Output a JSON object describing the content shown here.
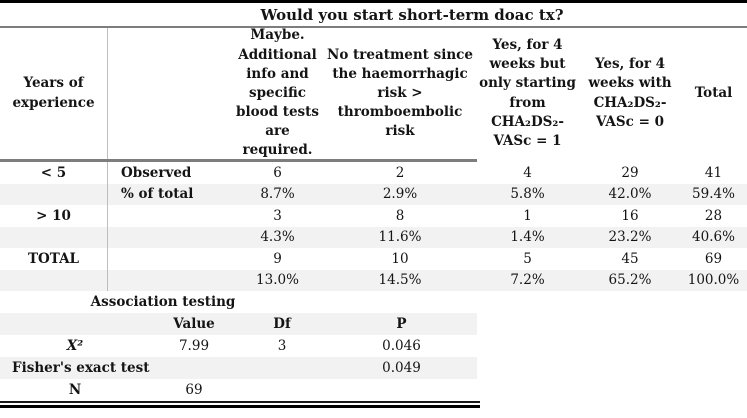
{
  "table": {
    "title": "Would you start short-term doac tx?",
    "col_headers": {
      "experience": "Years of\nexperience",
      "maybe": "Maybe.\nAdditional\ninfo and\nspecific\nblood tests\nare required.",
      "no_treatment": "No treatment since\nthe haemorrhagic\nrisk >\nthromboembolic\nrisk",
      "yes_vasc1": "Yes, for 4\nweeks but\nonly starting\nfrom\nCHA₂DS₂-\nVASc = 1",
      "yes_vasc0": "Yes, for 4\nweeks with\nCHA₂DS₂-\nVASc = 0",
      "total": "Total"
    },
    "rows": [
      {
        "experience": "< 5",
        "label": "Observed",
        "values": [
          "6",
          "2",
          "4",
          "29",
          "41"
        ]
      },
      {
        "experience": "",
        "label": "% of total",
        "values": [
          "8.7%",
          "2.9%",
          "5.8%",
          "42.0%",
          "59.4%"
        ]
      },
      {
        "experience": "> 10",
        "label": "",
        "values": [
          "3",
          "8",
          "1",
          "16",
          "28"
        ]
      },
      {
        "experience": "",
        "label": "",
        "values": [
          "4.3%",
          "11.6%",
          "1.4%",
          "23.2%",
          "40.6%"
        ]
      },
      {
        "experience": "TOTAL",
        "label": "",
        "values": [
          "9",
          "10",
          "5",
          "45",
          "69"
        ]
      },
      {
        "experience": "",
        "label": "",
        "values": [
          "13.0%",
          "14.5%",
          "7.2%",
          "65.2%",
          "100.0%"
        ]
      }
    ]
  },
  "association": {
    "title": "Association testing",
    "headers": {
      "value": "Value",
      "df": "Df",
      "p": "P"
    },
    "chi": {
      "label": "X²",
      "value": "7.99",
      "df": "3",
      "p": "0.046"
    },
    "fisher": {
      "label": "Fisher's exact test",
      "p": "0.049"
    },
    "n": {
      "label": "N",
      "value": "69"
    }
  },
  "colors": {
    "row_shading": "#f2f2f2",
    "rule_black": "#000000",
    "rule_gray": "#7d7d7d",
    "divider_gray": "#bdbdbd"
  }
}
